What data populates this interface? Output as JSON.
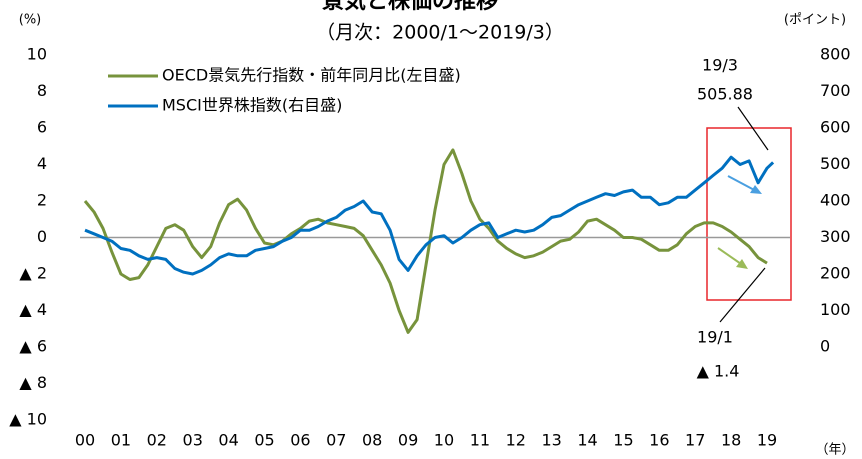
{
  "chart_data": {
    "type": "line",
    "title": "景気と株価の推移",
    "subtitle": "（月次：2000/1～2019/3）",
    "y_label": "(%)",
    "y2_label": "(ポイント)",
    "x_label": "（年）",
    "x": [
      2000,
      2000.25,
      2000.5,
      2000.75,
      2001,
      2001.25,
      2001.5,
      2001.75,
      2002,
      2002.25,
      2002.5,
      2002.75,
      2003,
      2003.25,
      2003.5,
      2003.75,
      2004,
      2004.25,
      2004.5,
      2004.75,
      2005,
      2005.25,
      2005.5,
      2005.75,
      2006,
      2006.25,
      2006.5,
      2006.75,
      2007,
      2007.25,
      2007.5,
      2007.75,
      2008,
      2008.25,
      2008.5,
      2008.75,
      2009,
      2009.25,
      2009.5,
      2009.75,
      2010,
      2010.25,
      2010.5,
      2010.75,
      2011,
      2011.25,
      2011.5,
      2011.75,
      2012,
      2012.25,
      2012.5,
      2012.75,
      2013,
      2013.25,
      2013.5,
      2013.75,
      2014,
      2014.25,
      2014.5,
      2014.75,
      2015,
      2015.25,
      2015.5,
      2015.75,
      2016,
      2016.25,
      2016.5,
      2016.75,
      2017,
      2017.25,
      2017.5,
      2017.75,
      2018,
      2018.25,
      2018.5,
      2018.75,
      2019,
      2019.17
    ],
    "series": [
      {
        "name": "OECD景気先行指数・前年同月比(左目盛)",
        "color": "#77933c",
        "values": [
          2.0,
          1.4,
          0.5,
          -0.8,
          -2.0,
          -2.3,
          -2.2,
          -1.5,
          -0.5,
          0.5,
          0.7,
          0.4,
          -0.5,
          -1.1,
          -0.5,
          0.8,
          1.8,
          2.1,
          1.5,
          0.5,
          -0.3,
          -0.4,
          -0.2,
          0.2,
          0.5,
          0.9,
          1.0,
          0.8,
          0.7,
          0.6,
          0.5,
          0.1,
          -0.7,
          -1.5,
          -2.5,
          -4.0,
          -5.2,
          -4.5,
          -1.5,
          1.5,
          4.0,
          4.8,
          3.5,
          2.0,
          1.0,
          0.5,
          -0.2,
          -0.6,
          -0.9,
          -1.1,
          -1.0,
          -0.8,
          -0.5,
          -0.2,
          -0.1,
          0.3,
          0.9,
          1.0,
          0.7,
          0.4,
          0.0,
          0.0,
          -0.1,
          -0.4,
          -0.7,
          -0.7,
          -0.4,
          0.2,
          0.6,
          0.8,
          0.8,
          0.6,
          0.3,
          -0.1,
          -0.5,
          -1.1,
          -1.4,
          null
        ]
      },
      {
        "name": "MSCI世界株指数(右目盛)",
        "color": "#0070c0",
        "axis": "y2",
        "values": [
          320,
          310,
          300,
          290,
          270,
          265,
          250,
          240,
          245,
          240,
          215,
          205,
          200,
          210,
          225,
          245,
          255,
          250,
          250,
          265,
          270,
          275,
          290,
          300,
          320,
          320,
          330,
          345,
          355,
          375,
          385,
          400,
          370,
          365,
          320,
          240,
          210,
          250,
          280,
          300,
          305,
          285,
          300,
          320,
          335,
          340,
          300,
          310,
          320,
          315,
          320,
          335,
          355,
          360,
          375,
          390,
          400,
          410,
          420,
          415,
          425,
          430,
          410,
          410,
          390,
          395,
          410,
          410,
          430,
          450,
          470,
          490,
          520,
          500,
          510,
          450,
          490,
          505.88
        ]
      }
    ],
    "xlim": [
      1999.86,
      2019.64
    ],
    "xticks": [
      {
        "value": 2000,
        "label": "00"
      },
      {
        "value": 2001,
        "label": "01"
      },
      {
        "value": 2002,
        "label": "02"
      },
      {
        "value": 2003,
        "label": "03"
      },
      {
        "value": 2004,
        "label": "04"
      },
      {
        "value": 2005,
        "label": "05"
      },
      {
        "value": 2006,
        "label": "06"
      },
      {
        "value": 2007,
        "label": "07"
      },
      {
        "value": 2008,
        "label": "08"
      },
      {
        "value": 2009,
        "label": "09"
      },
      {
        "value": 2010,
        "label": "10"
      },
      {
        "value": 2011,
        "label": "11"
      },
      {
        "value": 2012,
        "label": "12"
      },
      {
        "value": 2013,
        "label": "13"
      },
      {
        "value": 2014,
        "label": "14"
      },
      {
        "value": 2015,
        "label": "15"
      },
      {
        "value": 2016,
        "label": "16"
      },
      {
        "value": 2017,
        "label": "17"
      },
      {
        "value": 2018,
        "label": "18"
      },
      {
        "value": 2019,
        "label": "19"
      }
    ],
    "ylim": [
      -10,
      10
    ],
    "yticks": [
      10,
      8,
      6,
      4,
      2,
      0,
      {
        "value": -2,
        "label": "▲ 2"
      },
      {
        "value": -4,
        "label": "▲ 4"
      },
      {
        "value": -6,
        "label": "▲ 6"
      },
      {
        "value": -8,
        "label": "▲ 8"
      },
      {
        "value": -10,
        "label": "▲ 10"
      }
    ],
    "y2lim": [
      -200,
      800
    ],
    "y2ticks": [
      800,
      700,
      600,
      500,
      400,
      300,
      200,
      100,
      0
    ],
    "annotations": [
      "19/3",
      "505.88",
      "19/1",
      "▲ 1.4"
    ]
  }
}
